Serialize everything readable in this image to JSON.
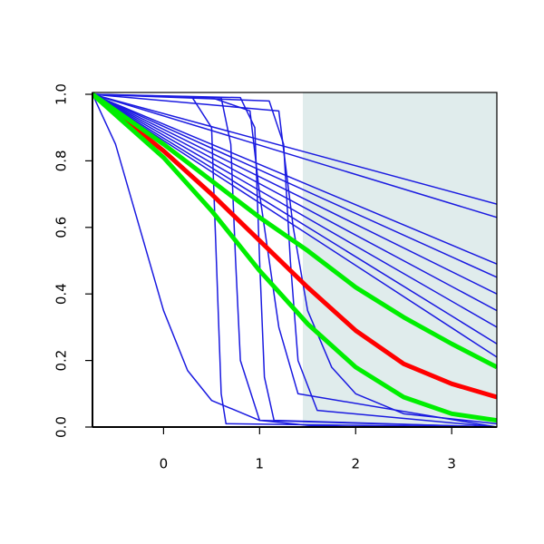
{
  "chart_data": {
    "type": "line",
    "xlim": [
      -0.74,
      3.47
    ],
    "ylim": [
      0,
      1
    ],
    "xticks": [
      0,
      1,
      2,
      3
    ],
    "yticks": [
      {
        "value": 0,
        "label": "0.0"
      },
      {
        "value": 0.2,
        "label": "0.2"
      },
      {
        "value": 0.4,
        "label": "0.4"
      },
      {
        "value": 0.6,
        "label": "0.6"
      },
      {
        "value": 0.8,
        "label": "0.8"
      },
      {
        "value": 1,
        "label": "1.0"
      }
    ],
    "shaded_region": {
      "x": [
        1.45,
        3.47
      ],
      "color": "#e0ecec"
    },
    "series": [
      {
        "color": "#1a1ae0",
        "line_width": 1.5,
        "x": [
          -0.74,
          3.47
        ],
        "values": [
          1,
          0.67
        ]
      },
      {
        "color": "#1a1ae0",
        "line_width": 1.5,
        "x": [
          -0.74,
          3.47
        ],
        "values": [
          1,
          0.63
        ]
      },
      {
        "color": "#1a1ae0",
        "line_width": 1.5,
        "x": [
          -0.74,
          3.47
        ],
        "values": [
          1,
          0.49
        ]
      },
      {
        "color": "#1a1ae0",
        "line_width": 1.5,
        "x": [
          -0.74,
          3.47
        ],
        "values": [
          1,
          0.45
        ]
      },
      {
        "color": "#1a1ae0",
        "line_width": 1.5,
        "x": [
          -0.74,
          3.47
        ],
        "values": [
          1,
          0.4
        ]
      },
      {
        "color": "#1a1ae0",
        "line_width": 1.5,
        "x": [
          -0.74,
          3.47
        ],
        "values": [
          1,
          0.35
        ]
      },
      {
        "color": "#1a1ae0",
        "line_width": 1.5,
        "x": [
          -0.74,
          3.47
        ],
        "values": [
          1,
          0.3
        ]
      },
      {
        "color": "#1a1ae0",
        "line_width": 1.5,
        "x": [
          -0.74,
          3.47
        ],
        "values": [
          1,
          0.25
        ]
      },
      {
        "color": "#1a1ae0",
        "line_width": 1.5,
        "x": [
          -0.74,
          3.47
        ],
        "values": [
          1,
          0.21
        ]
      },
      {
        "color": "#1a1ae0",
        "line_width": 1.5,
        "x": [
          -0.74,
          0.3,
          0.5,
          0.55,
          0.6,
          0.65,
          3.47
        ],
        "values": [
          1,
          0.99,
          0.9,
          0.5,
          0.1,
          0.01,
          0
        ]
      },
      {
        "color": "#1a1ae0",
        "line_width": 1.5,
        "x": [
          -0.74,
          0.8,
          0.95,
          1.0,
          1.05,
          1.15,
          3.47
        ],
        "values": [
          1,
          0.99,
          0.9,
          0.5,
          0.15,
          0.02,
          0
        ]
      },
      {
        "color": "#1a1ae0",
        "line_width": 1.5,
        "x": [
          -0.74,
          1.1,
          1.25,
          1.32,
          1.4,
          1.6,
          3.47
        ],
        "values": [
          1,
          0.98,
          0.85,
          0.5,
          0.2,
          0.05,
          0
        ]
      },
      {
        "color": "#1a1ae0",
        "line_width": 1.5,
        "x": [
          -0.74,
          0.6,
          0.7,
          0.75,
          0.8,
          1.0,
          3.47
        ],
        "values": [
          1,
          0.99,
          0.85,
          0.5,
          0.2,
          0.02,
          0
        ]
      },
      {
        "color": "#1a1ae0",
        "line_width": 1.5,
        "x": [
          -0.74,
          -0.5,
          -0.25,
          0,
          0.25,
          0.5,
          1,
          1.5,
          2
        ],
        "values": [
          1,
          0.85,
          0.6,
          0.35,
          0.17,
          0.08,
          0.02,
          0.005,
          0
        ]
      },
      {
        "color": "#1a1ae0",
        "line_width": 1.5,
        "x": [
          -0.74,
          1.2,
          1.35,
          1.5,
          1.75,
          2,
          2.5,
          3.47
        ],
        "values": [
          1,
          0.95,
          0.6,
          0.35,
          0.18,
          0.1,
          0.04,
          0.01
        ]
      },
      {
        "color": "#1a1ae0",
        "line_width": 1.5,
        "x": [
          -0.74,
          0.5,
          0.9,
          1.0,
          1.2,
          1.4,
          3.47
        ],
        "values": [
          1,
          0.99,
          0.95,
          0.7,
          0.3,
          0.1,
          0
        ]
      },
      {
        "color": "#ff0000",
        "line_width": 5,
        "x": [
          -0.74,
          0,
          0.5,
          1,
          1.5,
          2,
          2.5,
          3,
          3.47
        ],
        "values": [
          1,
          0.83,
          0.7,
          0.56,
          0.42,
          0.29,
          0.19,
          0.13,
          0.09
        ]
      },
      {
        "color": "#00ee00",
        "line_width": 5,
        "x": [
          -0.74,
          0,
          0.5,
          1,
          1.5,
          2,
          2.5,
          3,
          3.47
        ],
        "values": [
          1,
          0.85,
          0.74,
          0.63,
          0.53,
          0.42,
          0.33,
          0.25,
          0.18
        ]
      },
      {
        "color": "#00ee00",
        "line_width": 5,
        "x": [
          -0.74,
          0,
          0.5,
          1,
          1.5,
          2,
          2.5,
          3,
          3.47
        ],
        "values": [
          1,
          0.81,
          0.65,
          0.47,
          0.31,
          0.18,
          0.09,
          0.04,
          0.02
        ]
      }
    ]
  }
}
